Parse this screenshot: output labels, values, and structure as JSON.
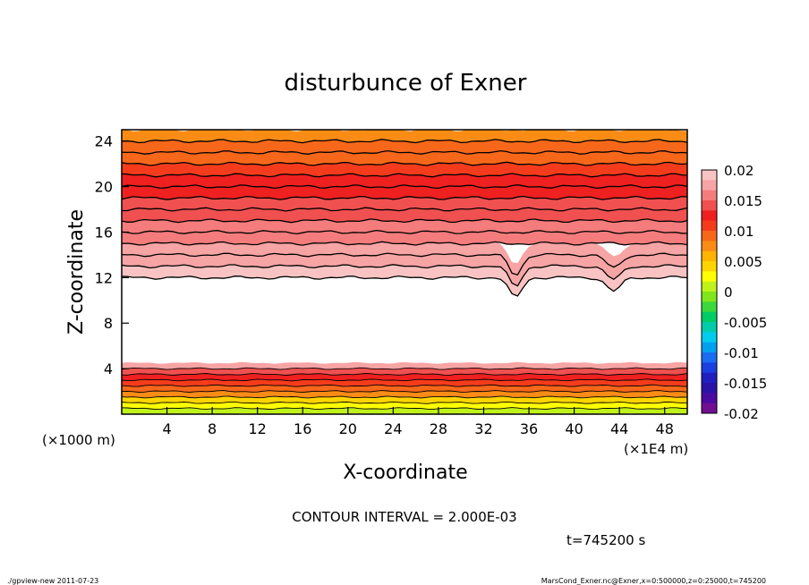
{
  "chart_data": {
    "type": "heatmap",
    "title": "disturbunce of Exner",
    "xlabel": "X-coordinate",
    "ylabel": "Z-coordinate",
    "x_unit_left": "(×1000 m)",
    "x_unit_right": "(×1E4 m)",
    "xticks": [
      "4",
      "8",
      "12",
      "16",
      "20",
      "24",
      "28",
      "32",
      "36",
      "40",
      "44",
      "48"
    ],
    "yticks": [
      "4",
      "8",
      "12",
      "16",
      "20",
      "24"
    ],
    "xlim": [
      0,
      50
    ],
    "ylim": [
      0,
      25
    ],
    "colorbar": {
      "labels": [
        "0.02",
        "0.015",
        "0.01",
        "0.005",
        "0",
        "-0.005",
        "-0.01",
        "-0.015",
        "-0.02"
      ],
      "range": [
        -0.02,
        0.02
      ],
      "colors_top_to_bottom": [
        "#F9C3C3",
        "#F7A4A4",
        "#F47C7C",
        "#F05050",
        "#EE2020",
        "#F43C1C",
        "#F7671A",
        "#FA8C16",
        "#FFB400",
        "#FFD400",
        "#FFFF00",
        "#BFF21B",
        "#80E61D",
        "#3CD83C",
        "#00CC66",
        "#00CCAA",
        "#00CCEE",
        "#00A0F0",
        "#1A6CF0",
        "#1A40E0",
        "#2020C0",
        "#2A14A8",
        "#4A0CA0",
        "#701090"
      ]
    },
    "contour_interval": "CONTOUR INTERVAL = 2.000E-03",
    "time_label": "t=745200 s",
    "footer_left": "./gpview-new   2011-07-23",
    "footer_right": "MarsCond_Exner.nc@Exner,x=0:500000,z=0:25000,t=745200",
    "profile": {
      "z": [
        0,
        0.5,
        1.0,
        1.5,
        2.0,
        2.5,
        3.0,
        3.5,
        4.0,
        4.5,
        12,
        13,
        14,
        15,
        16,
        17,
        18,
        19,
        20,
        21,
        22,
        23,
        24,
        25
      ],
      "value": [
        0.001,
        0.003,
        0.005,
        0.007,
        0.009,
        0.011,
        0.013,
        0.015,
        0.017,
        0.019,
        0.019,
        0.018,
        0.017,
        0.0165,
        0.016,
        0.015,
        0.014,
        0.013,
        0.012,
        0.011,
        0.01,
        0.009,
        0.008,
        0.007
      ]
    }
  }
}
